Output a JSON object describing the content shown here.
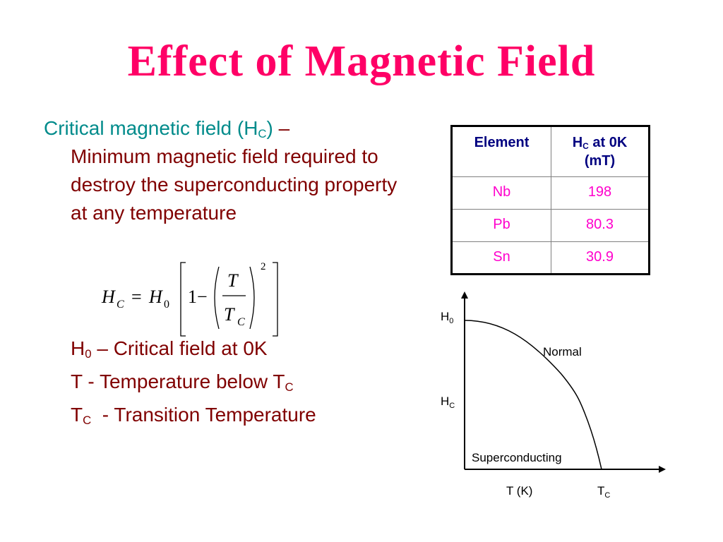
{
  "slide": {
    "title": "Effect of Magnetic Field"
  },
  "definition": {
    "term": "Critical magnetic field (H",
    "term_sub": "C",
    "term_close": ")",
    "dash": " –",
    "body": "Minimum magnetic field required to destroy the superconducting property at any temperature"
  },
  "formula": {
    "lhs_symbol": "H",
    "lhs_sub": "C",
    "equals": "=",
    "h0_symbol": "H",
    "h0_sub": "0",
    "one_minus": "1−",
    "numerator": "T",
    "denominator": "T",
    "denominator_sub": "C",
    "exponent": "2"
  },
  "symbols": [
    {
      "sym": "H",
      "sub": "0",
      "text": " – Critical field at 0K"
    },
    {
      "sym": "T",
      "sub": "",
      "text": " - Temperature below T",
      "trail_sub": "C"
    },
    {
      "sym": "T",
      "sub": "C",
      "text": "  - Transition Temperature"
    }
  ],
  "table": {
    "header_element": "Element",
    "header_hc_prefix": "H",
    "header_hc_sub": "C",
    "header_hc_suffix": " at 0K",
    "header_hc_unit": "(mT)",
    "rows": [
      {
        "element": "Nb",
        "hc": "198"
      },
      {
        "element": "Pb",
        "hc": "80.3"
      },
      {
        "element": "Sn",
        "hc": "30.9"
      }
    ]
  },
  "diagram": {
    "y_label_h0": "H",
    "y_label_h0_sub": "0",
    "y_label_hc": "H",
    "y_label_hc_sub": "C",
    "x_label": "T (K)",
    "x_label_tc": "T",
    "x_label_tc_sub": "C",
    "region_normal": "Normal",
    "region_superconducting": "Superconducting"
  }
}
